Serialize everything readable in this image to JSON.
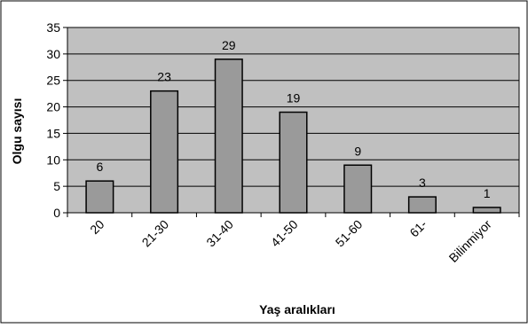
{
  "chart_data": {
    "type": "bar",
    "xlabel": "Yaş aralıkları",
    "ylabel": "Olgu sayısı",
    "categories": [
      "20",
      "21-30",
      "31-40",
      "41-50",
      "51-60",
      "61-",
      "Bilinmiyor"
    ],
    "values": [
      6,
      23,
      29,
      19,
      9,
      3,
      1
    ],
    "ylim": [
      0,
      35
    ],
    "yticks": [
      0,
      5,
      10,
      15,
      20,
      25,
      30,
      35
    ],
    "grid": true,
    "legend": "none",
    "colors": {
      "plot_background": "#c0c0c0",
      "bar_fill": "#9a9a9a",
      "bar_stroke": "#000000",
      "grid": "#000000",
      "frame": "#000000"
    }
  }
}
